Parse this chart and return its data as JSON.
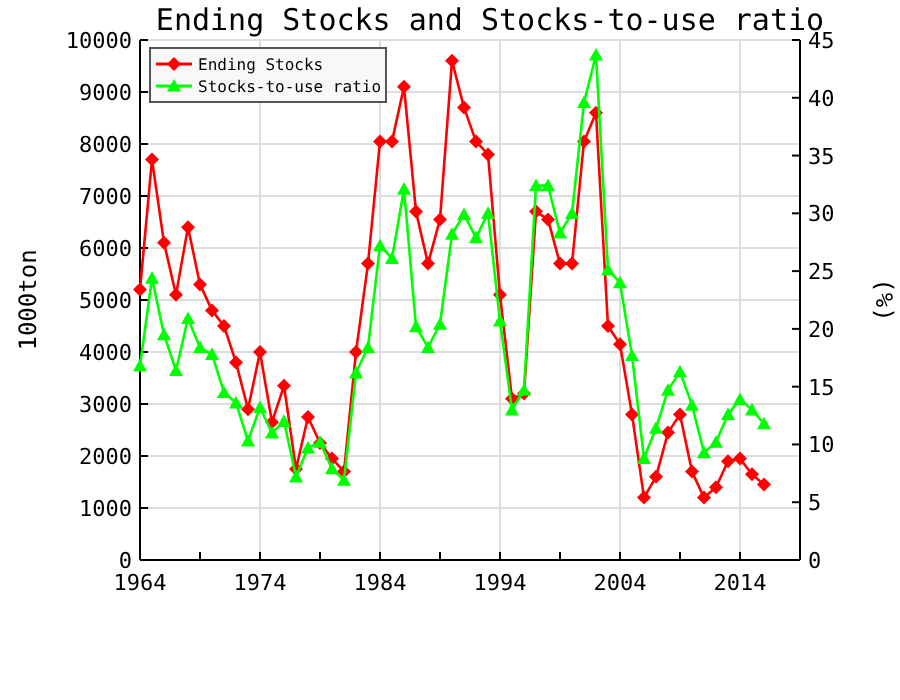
{
  "chart_data": {
    "type": "line",
    "title": "Ending Stocks and Stocks-to-use ratio",
    "ylabel": "1000ton",
    "y2label": "(%)",
    "x": [
      1964,
      1965,
      1966,
      1967,
      1968,
      1969,
      1970,
      1971,
      1972,
      1973,
      1974,
      1975,
      1976,
      1977,
      1978,
      1979,
      1980,
      1981,
      1982,
      1983,
      1984,
      1985,
      1986,
      1987,
      1988,
      1989,
      1990,
      1991,
      1992,
      1993,
      1994,
      1995,
      1996,
      1997,
      1998,
      1999,
      2000,
      2001,
      2002,
      2003,
      2004,
      2005,
      2006,
      2007,
      2008,
      2009,
      2010,
      2011,
      2012,
      2013,
      2014,
      2015,
      2016
    ],
    "xlim": [
      1964,
      2019
    ],
    "xticks": [
      1964,
      {
        "value": 1969,
        "label": null
      },
      1974,
      {
        "value": 1979,
        "label": null
      },
      1984,
      {
        "value": 1989,
        "label": null
      },
      1994,
      {
        "value": 1999,
        "label": null
      },
      2004,
      {
        "value": 2009,
        "label": null
      },
      2014,
      {
        "value": 2019,
        "label": null
      }
    ],
    "ylim": [
      0,
      10000
    ],
    "yticks": [
      0,
      1000,
      2000,
      3000,
      4000,
      5000,
      6000,
      7000,
      8000,
      9000,
      10000
    ],
    "y2lim": [
      0,
      45
    ],
    "y2ticks": [
      0,
      5,
      10,
      15,
      20,
      25,
      30,
      35,
      40,
      45
    ],
    "grid": true,
    "legend": "top left",
    "line_style": "solid",
    "series": [
      {
        "name": "Ending Stocks",
        "color": "#ff0000",
        "marker": "diamond",
        "values": [
          5200,
          7700,
          6100,
          5100,
          6400,
          5300,
          4800,
          4500,
          3800,
          2900,
          4000,
          2650,
          3350,
          1750,
          2750,
          2250,
          1950,
          1700,
          4000,
          5700,
          8050,
          8050,
          9100,
          6700,
          5700,
          6550,
          9600,
          8700,
          8050,
          7800,
          5100,
          3100,
          3200,
          6700,
          6550,
          5700,
          5700,
          8050,
          8600,
          4500,
          4150,
          2800,
          1200,
          1600,
          2450,
          2800,
          1700,
          1200,
          1400,
          1900,
          1950,
          1650,
          1450
        ]
      },
      {
        "name": "Stocks-to-use ratio",
        "color": "#00ff00",
        "marker": "triangle",
        "axis": "y2",
        "values": [
          16.8,
          24.4,
          19.5,
          16.4,
          20.9,
          18.4,
          17.8,
          14.5,
          13.6,
          10.3,
          13.2,
          11.0,
          12.0,
          7.2,
          9.7,
          10.2,
          7.9,
          6.9,
          16.2,
          18.4,
          27.2,
          26.1,
          32.1,
          20.2,
          18.4,
          20.4,
          28.2,
          29.9,
          27.9,
          30.0,
          20.7,
          13.0,
          14.7,
          32.4,
          32.4,
          28.3,
          30.0,
          39.6,
          43.7,
          25.1,
          24.0,
          17.7,
          8.8,
          11.4,
          14.7,
          16.3,
          13.4,
          9.3,
          10.2,
          12.6,
          13.9,
          13.0,
          11.8
        ]
      }
    ]
  }
}
